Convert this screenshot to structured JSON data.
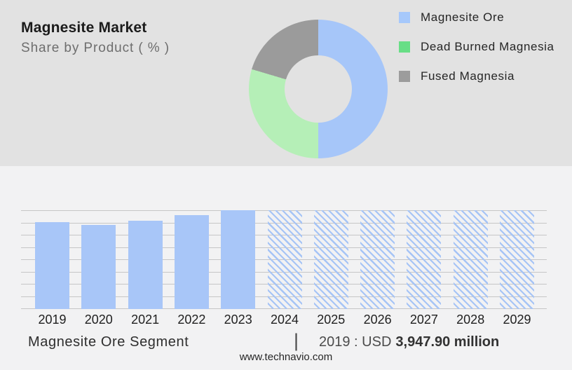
{
  "header": {
    "title": "Magnesite Market",
    "subtitle": "Share by Product ( % )"
  },
  "legend": {
    "items": [
      {
        "label": "Magnesite Ore",
        "color": "#a6c8fb"
      },
      {
        "label": "Dead Burned Magnesia",
        "color": "#68de86"
      },
      {
        "label": "Fused Magnesia",
        "color": "#9c9c9c"
      }
    ]
  },
  "footer": {
    "segment_label": "Magnesite Ore Segment",
    "separator": "|",
    "callout_prefix": "2019 : USD",
    "callout_value": "3,947.90 million",
    "website": "www.technavio.com"
  },
  "colors": {
    "panel_top_bg": "#e2e2e2",
    "panel_bottom_bg": "#f2f2f3",
    "bar_blue": "#a8c6f8",
    "hatch_line_blue": "#a6c4f6",
    "gridline_gray": "#c6c6c6",
    "donut_blue": "#a6c6f9",
    "donut_green": "#b5efb7",
    "donut_gray": "#9b9b9b"
  },
  "chart_data": [
    {
      "type": "pie",
      "subtype": "donut",
      "title": "Magnesite Market — Share by Product ( % )",
      "labels": [
        "Magnesite Ore",
        "Dead Burned Magnesia",
        "Fused Magnesia"
      ],
      "values": [
        50,
        29.6,
        20.4
      ],
      "colors": [
        "#a6c6f9",
        "#b5efb7",
        "#9b9b9b"
      ],
      "legend_position": "right",
      "data_labels_shown": false
    },
    {
      "type": "bar",
      "categories": [
        "2019",
        "2020",
        "2021",
        "2022",
        "2023",
        "2024",
        "2025",
        "2026",
        "2027",
        "2028",
        "2029"
      ],
      "relative_heights": [
        0.88,
        0.85,
        0.89,
        0.95,
        1.0,
        1.0,
        1.0,
        1.0,
        1.0,
        1.0,
        1.0
      ],
      "actual_years": [
        "2019",
        "2020",
        "2021",
        "2022",
        "2023"
      ],
      "forecast_years": [
        "2024",
        "2025",
        "2026",
        "2027",
        "2028",
        "2029"
      ],
      "anchor_value": {
        "category": "2019",
        "value_usd_million": 3947.9,
        "label": "2019 : USD 3,947.90 million"
      },
      "bar_color": "#a8c6f8",
      "forecast_style": "diagonal-hatch",
      "grid": true,
      "gridline_count": 9,
      "y_axis_labels_shown": false
    }
  ]
}
